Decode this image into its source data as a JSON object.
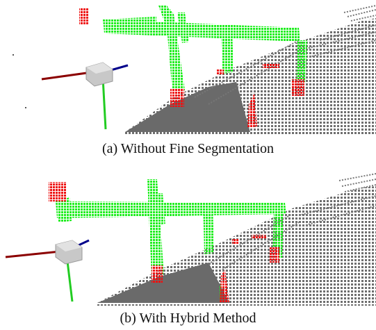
{
  "figure": {
    "panels": [
      {
        "caption": "(a) Without Fine Segmentation",
        "description_colors": {
          "segmented_structure": "#22ee22",
          "misclassified_points": "#ee1111",
          "ground_points": "#6e6e6e"
        }
      },
      {
        "caption": "(b) With Hybrid Method",
        "description_colors": {
          "segmented_structure": "#22ee22",
          "misclassified_points": "#ee1111",
          "ground_points": "#6e6e6e"
        }
      }
    ],
    "axes_gizmo": {
      "x_axis_color": "#8b0000",
      "y_axis_color": "#00008b",
      "z_axis_color": "#22cc22",
      "cube_color": "#c8c8c8"
    }
  }
}
